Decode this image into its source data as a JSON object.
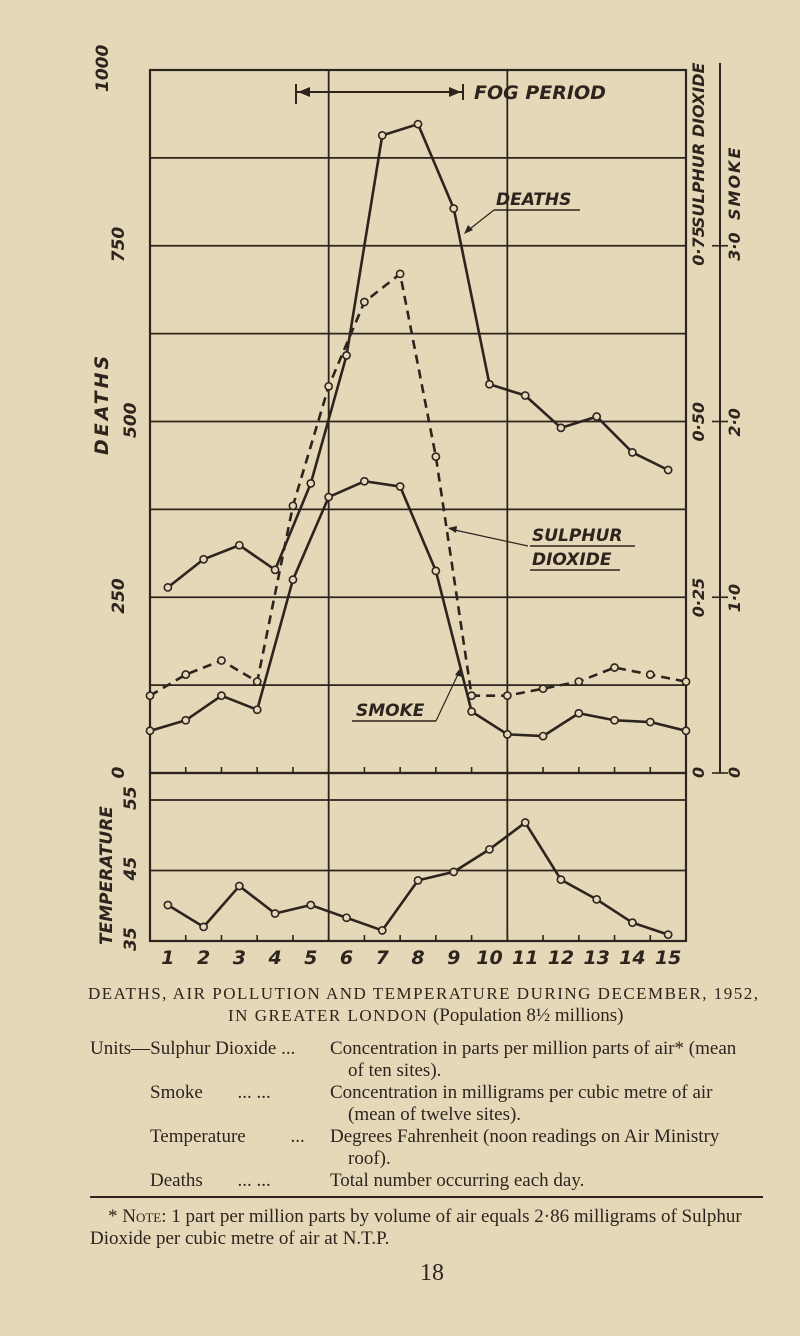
{
  "caption": {
    "line1": "DEATHS, AIR POLLUTION AND TEMPERATURE DURING DECEMBER, 1952,",
    "line2_caps": "IN GREATER LONDON",
    "line2_rest": "(Population 8½ millions)"
  },
  "units": [
    {
      "label": "Units—Sulphur Dioxide",
      "dots": "...",
      "desc1": "Concentration in parts per million parts of air* (mean",
      "desc2": "of ten sites)."
    },
    {
      "label": "Smoke",
      "dots": "...      ...",
      "desc1": "Concentration in milligrams per cubic metre of air",
      "desc2": "(mean of twelve sites)."
    },
    {
      "label": "Temperature",
      "dots": "...",
      "desc1": "Degrees Fahrenheit (noon readings on Air Ministry",
      "desc2": "roof)."
    },
    {
      "label": "Deaths",
      "dots": "...      ...",
      "desc1": "Total number occurring each day.",
      "desc2": ""
    }
  ],
  "note": {
    "marker": "* Note:",
    "line1": "1 part per million parts by volume of air equals 2·86 milligrams of Sulphur",
    "line2": "Dioxide per cubic metre of air at N.T.P."
  },
  "page_number": "18",
  "colors": {
    "ink": "#2c241d",
    "paper": "#e5d8b8"
  },
  "chart_data": {
    "type": "line",
    "annotations": {
      "fog_period": "FOG PERIOD",
      "fog_period_days": [
        4.5,
        9.3
      ]
    },
    "x_ticks": [
      "1",
      "2",
      "3",
      "4",
      "5",
      "6",
      "7",
      "8",
      "9",
      "10",
      "11",
      "12",
      "13",
      "14",
      "15"
    ],
    "grid": true,
    "panels": [
      {
        "name": "pollution-deaths",
        "axes": {
          "deaths": {
            "label": "DEATHS",
            "ticks": [
              "0",
              "250",
              "500",
              "750",
              "1000"
            ],
            "range": [
              0,
              1000
            ]
          },
          "sulphur_dioxide": {
            "label": "SULPHUR DIOXIDE",
            "ticks": [
              "0",
              "0·25",
              "0·50",
              "0·75"
            ],
            "range": [
              0,
              1.0
            ]
          },
          "smoke": {
            "label": "SMOKE",
            "ticks": [
              "0",
              "1·0",
              "2·0",
              "3·0"
            ],
            "range": [
              0,
              4.0
            ]
          }
        },
        "series": [
          {
            "name": "DEATHS",
            "axis": "deaths",
            "style": "solid",
            "x": [
              1,
              2,
              3,
              4,
              5,
              6,
              7,
              8,
              9,
              10,
              11,
              12,
              13,
              14,
              15
            ],
            "values": [
              264,
              304,
              324,
              289,
              412,
              594,
              907,
              923,
              803,
              553,
              537,
              491,
              507,
              456,
              431
            ]
          },
          {
            "name": "SULPHUR DIOXIDE",
            "axis": "sulphur_dioxide",
            "style": "dashed",
            "x": [
              0.5,
              1.5,
              2.5,
              3.5,
              4.5,
              5.5,
              6.5,
              7.5,
              8.5,
              9.5,
              10.5,
              11.5,
              12.5,
              13.5,
              14.5,
              15.5
            ],
            "values": [
              0.11,
              0.14,
              0.16,
              0.13,
              0.38,
              0.55,
              0.67,
              0.71,
              0.45,
              0.11,
              0.11,
              0.12,
              0.13,
              0.15,
              0.14,
              0.13
            ]
          },
          {
            "name": "SMOKE",
            "axis": "smoke",
            "style": "solid",
            "x": [
              0.5,
              1.5,
              2.5,
              3.5,
              4.5,
              5.5,
              6.5,
              7.5,
              8.5,
              9.5,
              10.5,
              11.5,
              12.5,
              13.5,
              14.5,
              15.5
            ],
            "values": [
              0.24,
              0.3,
              0.44,
              0.36,
              1.1,
              1.57,
              1.66,
              1.63,
              1.15,
              0.35,
              0.22,
              0.21,
              0.34,
              0.3,
              0.29,
              0.24
            ]
          }
        ]
      },
      {
        "name": "temperature",
        "axes": {
          "temperature": {
            "label": "TEMPERATURE",
            "ticks": [
              "35",
              "45",
              "55"
            ],
            "range": [
              35,
              55
            ]
          }
        },
        "series": [
          {
            "name": "TEMPERATURE",
            "axis": "temperature",
            "style": "solid",
            "x": [
              1,
              2,
              3,
              4,
              5,
              6,
              7,
              8,
              9,
              10,
              11,
              12,
              13,
              14,
              15
            ],
            "values": [
              40.1,
              37.0,
              42.8,
              38.9,
              40.1,
              38.3,
              36.5,
              43.6,
              44.8,
              48.0,
              51.8,
              43.7,
              40.9,
              37.6,
              35.9
            ]
          }
        ]
      }
    ]
  }
}
